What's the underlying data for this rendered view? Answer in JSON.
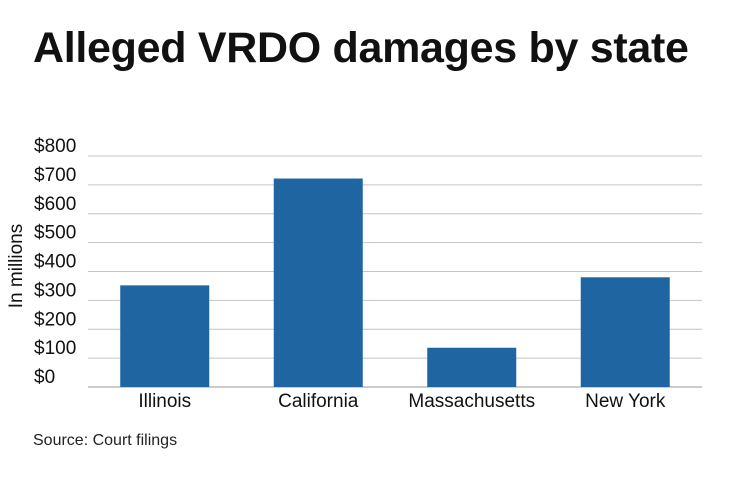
{
  "chart_data": {
    "type": "bar",
    "title": "Alleged VRDO damages by state",
    "ylabel": "In millions",
    "xlabel": "",
    "categories": [
      "Illinois",
      "California",
      "Massachusetts",
      "New York"
    ],
    "values": [
      352,
      722,
      136,
      380
    ],
    "ylim": [
      0,
      800
    ],
    "yticks": [
      0,
      100,
      200,
      300,
      400,
      500,
      600,
      700,
      800
    ],
    "ytick_labels": [
      "$0",
      "$100",
      "$200",
      "$300",
      "$400",
      "$500",
      "$600",
      "$700",
      "$800"
    ],
    "bar_color": "#1f65a1",
    "grid": true,
    "source": "Source: Court filings"
  }
}
